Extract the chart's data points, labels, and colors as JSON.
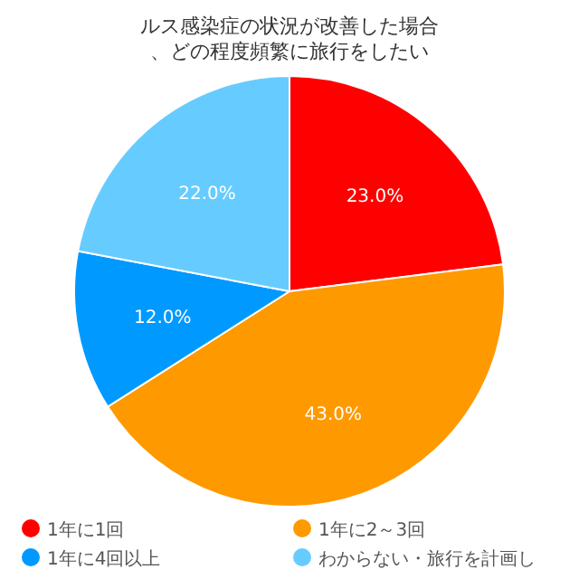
{
  "chart_data": {
    "type": "pie",
    "title": "ルス感染症の状況が改善した場合、どの程度頻繁に旅行をしたい",
    "categories": [
      "1年に1回",
      "1年に2～3回",
      "1年に4回以上",
      "わからない・旅行を計画し"
    ],
    "values": [
      23.0,
      43.0,
      12.0,
      22.0
    ],
    "colors": [
      "#ff0000",
      "#ff9900",
      "#0099ff",
      "#66ccff"
    ],
    "value_labels": [
      "23.0%",
      "43.0%",
      "12.0%",
      "22.0%"
    ],
    "legend": "bottom"
  }
}
